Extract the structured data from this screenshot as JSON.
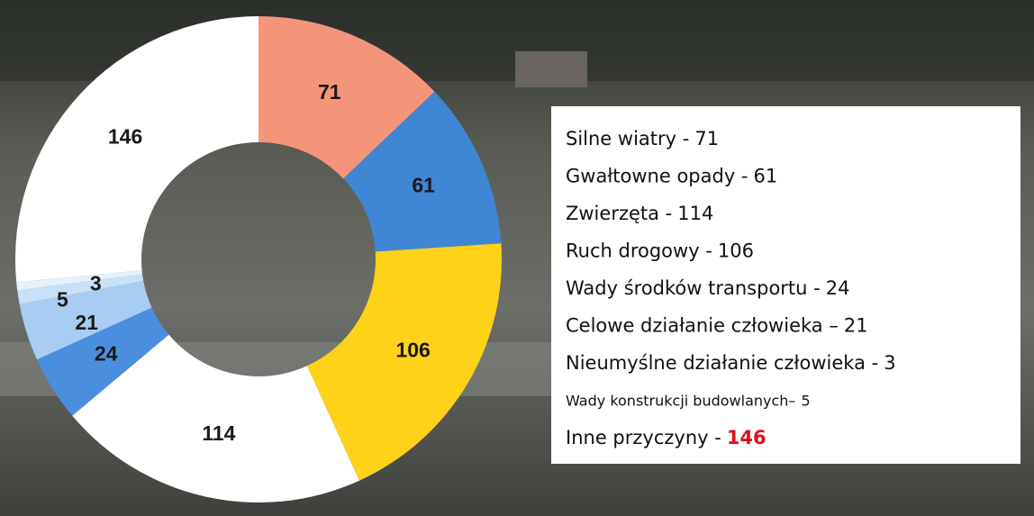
{
  "chart_data": {
    "type": "donut",
    "categories": [
      "Silne wiatry -",
      "Gwałtowne opady -",
      "Ruch drogowy -",
      "Zwierzęta -",
      "Wady środków transportu -",
      "Celowe działanie człowieka –",
      "Wady konstrukcji budowlanych–",
      "Nieumyślne działanie człowieka -",
      "Inne przyczyny -"
    ],
    "values": [
      71,
      61,
      106,
      114,
      24,
      21,
      5,
      3,
      146
    ],
    "colors": [
      "#f4957a",
      "#3f86d4",
      "#ffd21a",
      "#ffffff",
      "#4a8fde",
      "#a9cdf2",
      "#c9e1f7",
      "#e4f0fb",
      "#ffffff"
    ],
    "legend_order": [
      0,
      1,
      3,
      2,
      4,
      5,
      7,
      6,
      8
    ]
  }
}
